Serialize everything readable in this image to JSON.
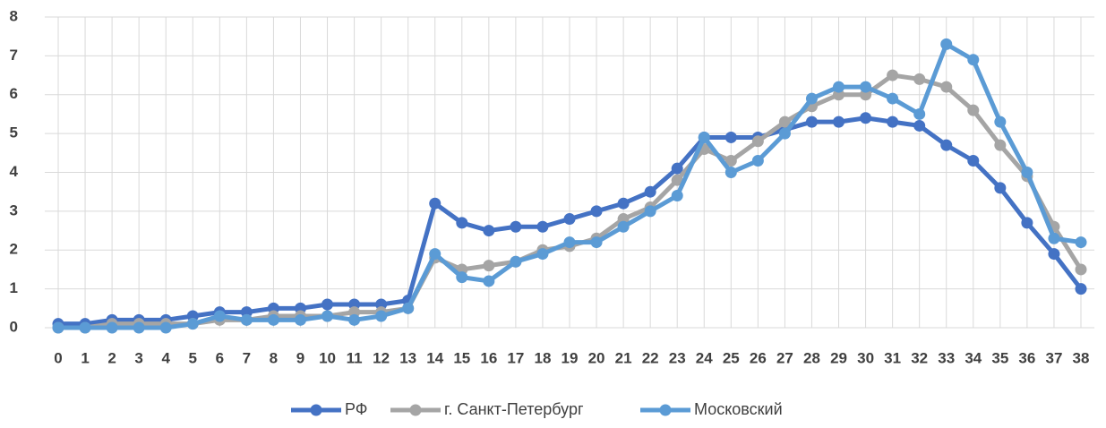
{
  "chart_data": {
    "type": "line",
    "categories": [
      "0",
      "1",
      "2",
      "3",
      "4",
      "5",
      "6",
      "7",
      "8",
      "9",
      "10",
      "11",
      "12",
      "13",
      "14",
      "15",
      "16",
      "17",
      "18",
      "19",
      "20",
      "21",
      "22",
      "23",
      "24",
      "25",
      "26",
      "27",
      "28",
      "29",
      "30",
      "31",
      "32",
      "33",
      "34",
      "35",
      "36",
      "37",
      "38"
    ],
    "series": [
      {
        "name": "РФ",
        "color": "#4472c4",
        "values": [
          0.1,
          0.1,
          0.2,
          0.2,
          0.2,
          0.3,
          0.4,
          0.4,
          0.5,
          0.5,
          0.6,
          0.6,
          0.6,
          0.7,
          3.2,
          2.7,
          2.5,
          2.6,
          2.6,
          2.8,
          3.0,
          3.2,
          3.5,
          4.1,
          4.9,
          4.9,
          4.9,
          5.1,
          5.3,
          5.3,
          5.4,
          5.3,
          5.2,
          4.7,
          4.3,
          3.6,
          2.7,
          1.9,
          1.0
        ]
      },
      {
        "name": "г. Санкт-Петербург",
        "color": "#a5a5a5",
        "values": [
          0,
          0,
          0.1,
          0.1,
          0.1,
          0.1,
          0.2,
          0.2,
          0.3,
          0.3,
          0.3,
          0.4,
          0.4,
          0.5,
          1.8,
          1.5,
          1.6,
          1.7,
          2.0,
          2.1,
          2.3,
          2.8,
          3.1,
          3.8,
          4.6,
          4.3,
          4.8,
          5.3,
          5.7,
          6.0,
          6.0,
          6.5,
          6.4,
          6.2,
          5.6,
          4.7,
          3.9,
          2.6,
          1.5
        ]
      },
      {
        "name": "Московский",
        "color": "#5b9bd5",
        "values": [
          0,
          0,
          0,
          0,
          0,
          0.1,
          0.3,
          0.2,
          0.2,
          0.2,
          0.3,
          0.2,
          0.3,
          0.5,
          1.9,
          1.3,
          1.2,
          1.7,
          1.9,
          2.2,
          2.2,
          2.6,
          3.0,
          3.4,
          4.9,
          4.0,
          4.3,
          5.0,
          5.9,
          6.2,
          6.2,
          5.9,
          5.5,
          7.3,
          6.9,
          5.3,
          4.0,
          2.3,
          2.2
        ]
      }
    ],
    "ylim": [
      0,
      8
    ],
    "yticks": [
      0,
      1,
      2,
      3,
      4,
      5,
      6,
      7,
      8
    ],
    "grid": true,
    "legend": "bottom"
  }
}
